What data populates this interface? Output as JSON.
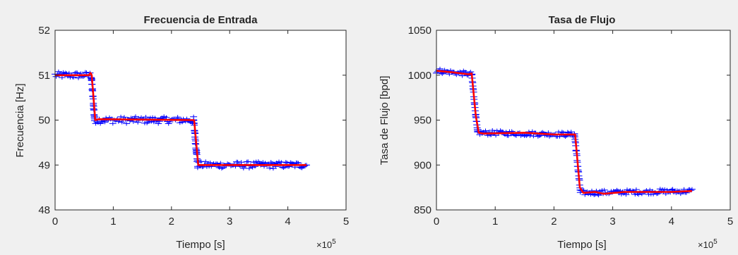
{
  "chart_data": [
    {
      "type": "scatter",
      "title": "Frecuencia de Entrada",
      "xlabel": "Tiempo [s]",
      "ylabel": "Frecuencia [Hz]",
      "xlim": [
        0,
        5
      ],
      "ylim": [
        48,
        52
      ],
      "x_multiplier": "×10",
      "x_multiplier_exp": "5",
      "xticks": [
        0,
        1,
        2,
        3,
        4,
        5
      ],
      "xtick_labels": [
        "0",
        "1",
        "2",
        "3",
        "4",
        "5"
      ],
      "yticks": [
        48,
        49,
        50,
        51,
        52
      ],
      "ytick_labels": [
        "48",
        "49",
        "50",
        "51",
        "52"
      ],
      "grid": false,
      "series": [
        {
          "color": "#0000ff",
          "marker": "+",
          "noise": 0.08,
          "segments": [
            {
              "x0": 0.0,
              "x1": 0.62,
              "y0": 51.0,
              "y1": 51.0
            },
            {
              "x0": 0.62,
              "x1": 0.68,
              "y0": 51.0,
              "y1": 50.0
            },
            {
              "x0": 0.68,
              "x1": 2.38,
              "y0": 50.0,
              "y1": 50.0
            },
            {
              "x0": 2.38,
              "x1": 2.45,
              "y0": 50.0,
              "y1": 49.0
            },
            {
              "x0": 2.45,
              "x1": 4.32,
              "y0": 49.0,
              "y1": 49.0
            }
          ]
        },
        {
          "color": "#ff0000",
          "marker": "line",
          "points": [
            [
              0.0,
              51.0
            ],
            [
              0.58,
              51.0
            ],
            [
              0.61,
              51.05
            ],
            [
              0.63,
              51.0
            ],
            [
              0.69,
              50.0
            ],
            [
              0.75,
              50.02
            ],
            [
              2.39,
              50.0
            ],
            [
              2.46,
              49.0
            ],
            [
              4.32,
              49.0
            ]
          ]
        }
      ]
    },
    {
      "type": "scatter",
      "title": "Tasa de Flujo",
      "xlabel": "Tiempo [s]",
      "ylabel": "Tasa de Flujo [bpd]",
      "xlim": [
        0,
        5
      ],
      "ylim": [
        850,
        1050
      ],
      "x_multiplier": "×10",
      "x_multiplier_exp": "5",
      "xticks": [
        0,
        1,
        2,
        3,
        4,
        5
      ],
      "xtick_labels": [
        "0",
        "1",
        "2",
        "3",
        "4",
        "5"
      ],
      "yticks": [
        850,
        900,
        950,
        1000,
        1050
      ],
      "ytick_labels": [
        "850",
        "900",
        "950",
        "1000",
        "1050"
      ],
      "grid": false,
      "series": [
        {
          "color": "#0000ff",
          "marker": "+",
          "noise": 3,
          "segments": [
            {
              "x0": 0.0,
              "x1": 0.6,
              "y0": 1005,
              "y1": 1001
            },
            {
              "x0": 0.6,
              "x1": 0.7,
              "y0": 1001,
              "y1": 935
            },
            {
              "x0": 0.7,
              "x1": 2.35,
              "y0": 936,
              "y1": 934
            },
            {
              "x0": 2.35,
              "x1": 2.45,
              "y0": 934,
              "y1": 870
            },
            {
              "x0": 2.45,
              "x1": 4.35,
              "y0": 869,
              "y1": 871
            }
          ]
        },
        {
          "color": "#ff0000",
          "marker": "line",
          "points": [
            [
              0.0,
              1005
            ],
            [
              0.3,
              1003
            ],
            [
              0.55,
              1001
            ],
            [
              0.6,
              1002
            ],
            [
              0.67,
              955
            ],
            [
              0.72,
              936
            ],
            [
              0.8,
              935
            ],
            [
              1.5,
              936
            ],
            [
              2.0,
              934
            ],
            [
              2.36,
              934
            ],
            [
              2.44,
              875
            ],
            [
              2.5,
              869
            ],
            [
              2.7,
              870
            ],
            [
              2.85,
              868
            ],
            [
              3.2,
              870
            ],
            [
              4.0,
              870
            ],
            [
              4.35,
              871
            ]
          ]
        }
      ]
    }
  ]
}
